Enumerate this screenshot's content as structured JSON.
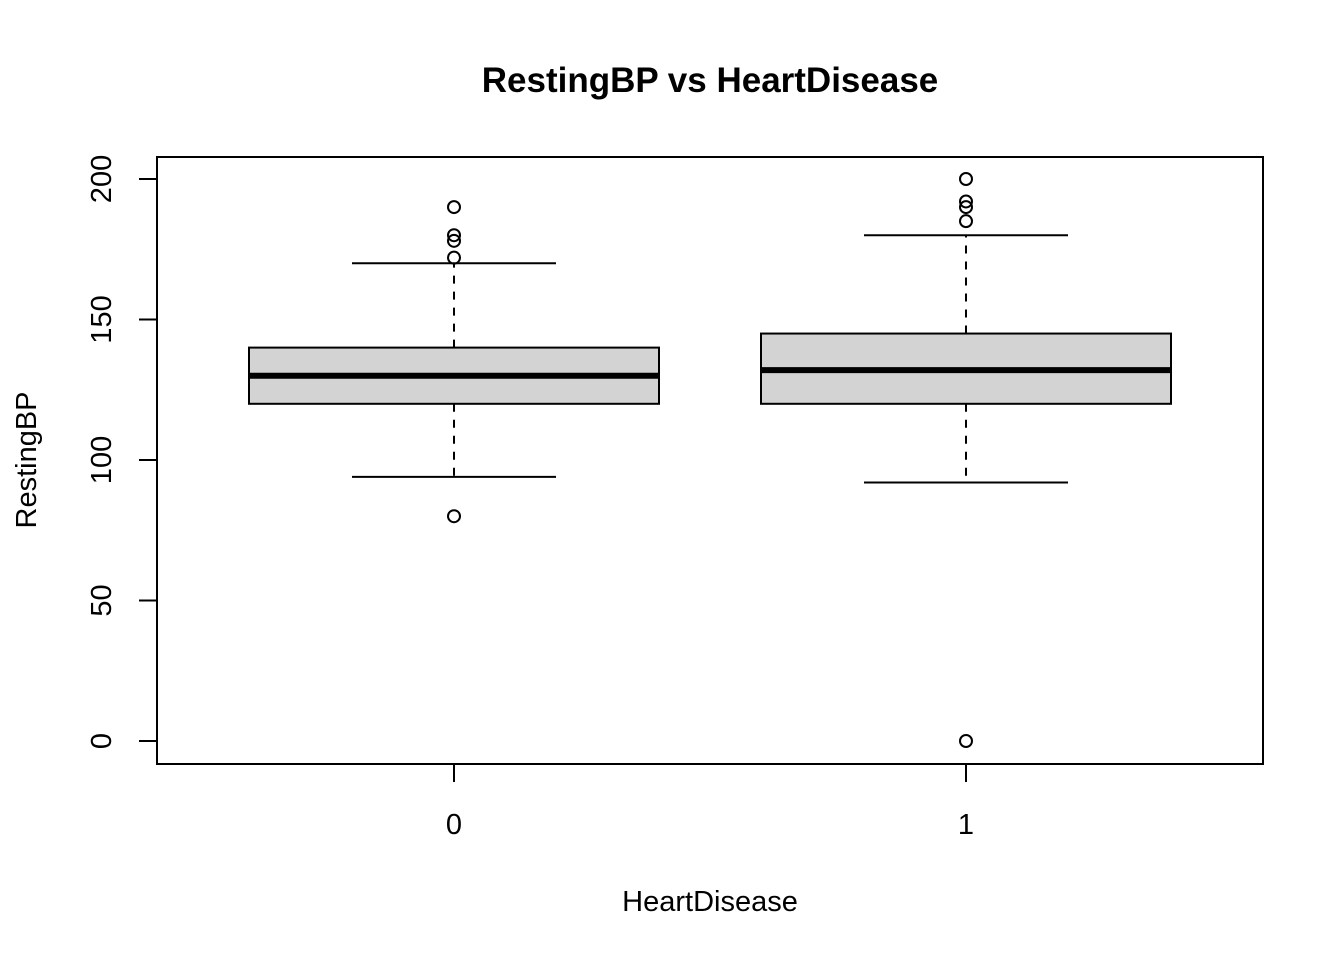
{
  "chart_data": {
    "type": "boxplot",
    "title": "RestingBP vs HeartDisease",
    "xlabel": "HeartDisease",
    "ylabel": "RestingBP",
    "ylim": [
      0,
      200
    ],
    "yticks": [
      0,
      50,
      100,
      150,
      200
    ],
    "ytick_labels": [
      "0",
      "50",
      "100",
      "150",
      "200"
    ],
    "categories": [
      "0",
      "1"
    ],
    "box_fill": "#d3d3d3",
    "grid": false,
    "legend": "none",
    "boxes": [
      {
        "category": "0",
        "whisker_low": 94,
        "q1": 120,
        "median": 130,
        "q3": 140,
        "whisker_high": 170,
        "outliers": [
          80,
          172,
          178,
          180,
          190
        ]
      },
      {
        "category": "1",
        "whisker_low": 92,
        "q1": 120,
        "median": 132,
        "q3": 145,
        "whisker_high": 180,
        "outliers": [
          0,
          185,
          190,
          192,
          200
        ]
      }
    ]
  }
}
